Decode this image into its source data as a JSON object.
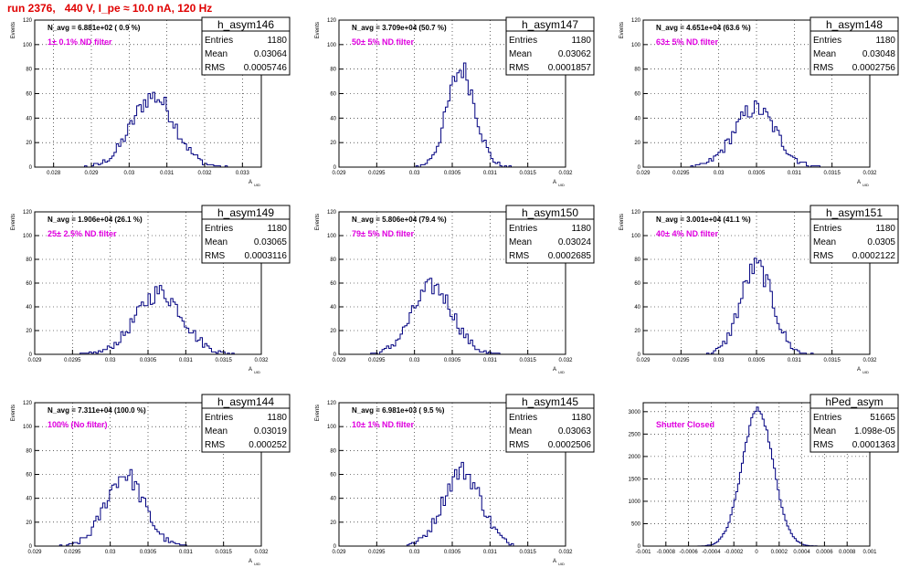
{
  "page_title": "run 2376,   440 V, I_pe ≈ 10.0 nA, 120 Hz",
  "colors": {
    "title": "#e00000",
    "filter_text": "#e000e0",
    "histogram": "#000080"
  },
  "chart_data": [
    {
      "type": "histogram",
      "name": "h_asym146",
      "nav_text": "N_avg = 6.881e+02 ( 0.9 %)",
      "filter_text": "1± 0.1% ND filter",
      "ylabel": "Events",
      "xlabel": "A_UID",
      "xlim": [
        0.0275,
        0.0335
      ],
      "ylim": [
        0,
        120
      ],
      "yticks": [
        0,
        20,
        40,
        60,
        80,
        100,
        120
      ],
      "xticks": [
        0.028,
        0.029,
        0.03,
        0.031,
        0.032,
        0.033
      ],
      "xtick_labels": [
        "0.028",
        "0.029",
        "0.03",
        "0.031",
        "0.032",
        "0.033"
      ],
      "stats": {
        "Entries": "1180",
        "Mean": "0.03064",
        "RMS": "0.0005746"
      },
      "mean": 0.03064,
      "rms": 0.0005746,
      "entries": 1180,
      "peak": 58,
      "bins": 100
    },
    {
      "type": "histogram",
      "name": "h_asym147",
      "nav_text": "N_avg = 3.709e+04 (50.7 %)",
      "filter_text": "50± 5% ND filter",
      "ylabel": "Events",
      "xlabel": "A_UID",
      "xlim": [
        0.029,
        0.032
      ],
      "ylim": [
        0,
        120
      ],
      "yticks": [
        0,
        20,
        40,
        60,
        80,
        100,
        120
      ],
      "xticks": [
        0.029,
        0.0295,
        0.03,
        0.0305,
        0.031,
        0.0315,
        0.032
      ],
      "xtick_labels": [
        "0.029",
        "0.0295",
        "0.03",
        "0.0305",
        "0.031",
        "0.0315",
        "0.032"
      ],
      "stats": {
        "Entries": "1180",
        "Mean": "0.03062",
        "RMS": "0.0001857"
      },
      "mean": 0.03062,
      "rms": 0.0001857,
      "entries": 1180,
      "peak": 80,
      "bins": 100
    },
    {
      "type": "histogram",
      "name": "h_asym148",
      "nav_text": "N_avg = 4.651e+04 (63.6 %)",
      "filter_text": "63± 5% ND filter",
      "ylabel": "Events",
      "xlabel": "A_UID",
      "xlim": [
        0.029,
        0.032
      ],
      "ylim": [
        0,
        120
      ],
      "yticks": [
        0,
        20,
        40,
        60,
        80,
        100,
        120
      ],
      "xticks": [
        0.029,
        0.0295,
        0.03,
        0.0305,
        0.031,
        0.0315,
        0.032
      ],
      "xtick_labels": [
        "0.029",
        "0.0295",
        "0.03",
        "0.0305",
        "0.031",
        "0.0315",
        "0.032"
      ],
      "stats": {
        "Entries": "1180",
        "Mean": "0.03048",
        "RMS": "0.0002756"
      },
      "mean": 0.03048,
      "rms": 0.0002756,
      "entries": 1180,
      "peak": 48,
      "bins": 100
    },
    {
      "type": "histogram",
      "name": "h_asym149",
      "nav_text": "N_avg = 1.906e+04 (26.1 %)",
      "filter_text": "25± 2.5% ND filter",
      "ylabel": "Events",
      "xlabel": "A_UID",
      "xlim": [
        0.029,
        0.032
      ],
      "ylim": [
        0,
        120
      ],
      "yticks": [
        0,
        20,
        40,
        60,
        80,
        100,
        120
      ],
      "xticks": [
        0.029,
        0.0295,
        0.03,
        0.0305,
        0.031,
        0.0315,
        0.032
      ],
      "xtick_labels": [
        "0.029",
        "0.0295",
        "0.03",
        "0.0305",
        "0.031",
        "0.0315",
        "0.032"
      ],
      "stats": {
        "Entries": "1180",
        "Mean": "0.03065",
        "RMS": "0.0003116"
      },
      "mean": 0.03065,
      "rms": 0.0003116,
      "entries": 1180,
      "peak": 52,
      "bins": 100
    },
    {
      "type": "histogram",
      "name": "h_asym150",
      "nav_text": "N_avg = 5.806e+04 (79.4 %)",
      "filter_text": "79± 5% ND filter",
      "ylabel": "Events",
      "xlabel": "A_UID",
      "xlim": [
        0.029,
        0.032
      ],
      "ylim": [
        0,
        120
      ],
      "yticks": [
        0,
        20,
        40,
        60,
        80,
        100,
        120
      ],
      "xticks": [
        0.029,
        0.0295,
        0.03,
        0.0305,
        0.031,
        0.0315,
        0.032
      ],
      "xtick_labels": [
        "0.029",
        "0.0295",
        "0.03",
        "0.0305",
        "0.031",
        "0.0315",
        "0.032"
      ],
      "stats": {
        "Entries": "1180",
        "Mean": "0.03024",
        "RMS": "0.0002685"
      },
      "mean": 0.03024,
      "rms": 0.0002685,
      "entries": 1180,
      "peak": 57,
      "bins": 100
    },
    {
      "type": "histogram",
      "name": "h_asym151",
      "nav_text": "N_avg = 3.001e+04 (41.1 %)",
      "filter_text": "40± 4% ND filter",
      "ylabel": "Events",
      "xlabel": "A_UID",
      "xlim": [
        0.029,
        0.032
      ],
      "ylim": [
        0,
        120
      ],
      "yticks": [
        0,
        20,
        40,
        60,
        80,
        100,
        120
      ],
      "xticks": [
        0.029,
        0.0295,
        0.03,
        0.0305,
        0.031,
        0.0315,
        0.032
      ],
      "xtick_labels": [
        "0.029",
        "0.0295",
        "0.03",
        "0.0305",
        "0.031",
        "0.0315",
        "0.032"
      ],
      "stats": {
        "Entries": "1180",
        "Mean": "0.0305",
        "RMS": "0.0002122"
      },
      "mean": 0.0305,
      "rms": 0.0002122,
      "entries": 1180,
      "peak": 74,
      "bins": 100
    },
    {
      "type": "histogram",
      "name": "h_asym144",
      "nav_text": "N_avg = 7.311e+04 (100.0 %)",
      "filter_text": "100% (No filter)",
      "ylabel": "Events",
      "xlabel": "A_UID",
      "xlim": [
        0.029,
        0.032
      ],
      "ylim": [
        0,
        120
      ],
      "yticks": [
        0,
        20,
        40,
        60,
        80,
        100,
        120
      ],
      "xticks": [
        0.029,
        0.0295,
        0.03,
        0.0305,
        0.031,
        0.0315,
        0.032
      ],
      "xtick_labels": [
        "0.029",
        "0.0295",
        "0.03",
        "0.0305",
        "0.031",
        "0.0315",
        "0.032"
      ],
      "stats": {
        "Entries": "1180",
        "Mean": "0.03019",
        "RMS": "0.000252"
      },
      "mean": 0.03019,
      "rms": 0.000252,
      "entries": 1180,
      "peak": 60,
      "bins": 100
    },
    {
      "type": "histogram",
      "name": "h_asym145",
      "nav_text": "N_avg = 6.981e+03 ( 9.5 %)",
      "filter_text": "10± 1% ND filter",
      "ylabel": "Events",
      "xlabel": "A_UID",
      "xlim": [
        0.029,
        0.032
      ],
      "ylim": [
        0,
        120
      ],
      "yticks": [
        0,
        20,
        40,
        60,
        80,
        100,
        120
      ],
      "xticks": [
        0.029,
        0.0295,
        0.03,
        0.0305,
        0.031,
        0.0315,
        0.032
      ],
      "xtick_labels": [
        "0.029",
        "0.0295",
        "0.03",
        "0.0305",
        "0.031",
        "0.0315",
        "0.032"
      ],
      "stats": {
        "Entries": "1180",
        "Mean": "0.03063",
        "RMS": "0.0002506"
      },
      "mean": 0.03063,
      "rms": 0.0002506,
      "entries": 1180,
      "peak": 63,
      "bins": 100
    },
    {
      "type": "histogram",
      "name": "hPed_asym",
      "nav_text": "",
      "filter_text": "Shutter Closed",
      "ylabel": "",
      "xlabel": "",
      "xlim": [
        -0.001,
        0.001
      ],
      "ylim": [
        0,
        3200
      ],
      "yticks": [
        0,
        500,
        1000,
        1500,
        2000,
        2500,
        3000
      ],
      "xticks": [
        -0.001,
        -0.0008,
        -0.0006,
        -0.0004,
        -0.0002,
        0,
        0.0002,
        0.0004,
        0.0006,
        0.0008,
        0.001
      ],
      "xtick_labels": [
        "-0.001",
        "-0.0008",
        "-0.0006",
        "-0.0004",
        "-0.0002",
        "0",
        "0.0002",
        "0.0004",
        "0.0006",
        "0.0008",
        "0.001"
      ],
      "stats": {
        "Entries": "51665",
        "Mean": "1.098e-05",
        "RMS": "0.0001363"
      },
      "mean": 1.098e-05,
      "rms": 0.0001363,
      "entries": 51665,
      "peak": 3050,
      "bins": 120
    }
  ]
}
